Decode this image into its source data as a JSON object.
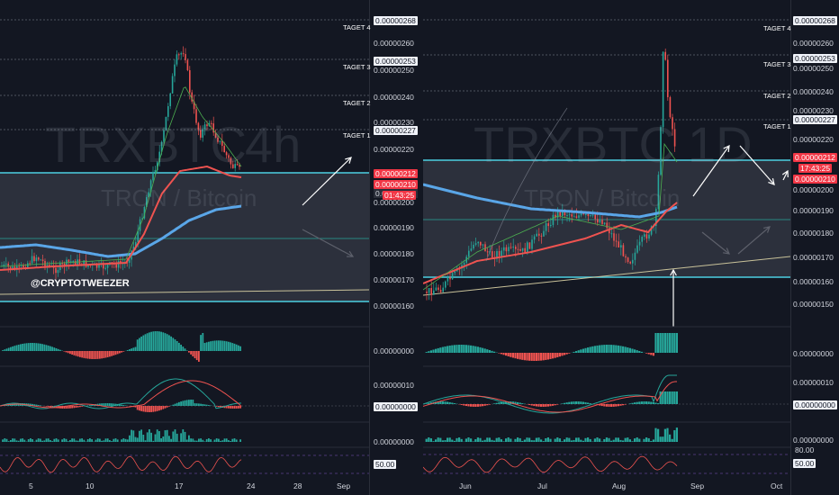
{
  "credit": "@CRYPTOTWEEZER",
  "colors": {
    "background": "#131722",
    "zone": "#363a45",
    "support_line": "#4dd0e1",
    "ema_blue": "#5aa6e8",
    "ema_red": "#ef5350",
    "up": "#26a69a",
    "down": "#ef5350",
    "trend": "#c9c29a"
  },
  "left": {
    "watermark_symbol": "TRXBTC",
    "watermark_interval": "4h",
    "watermark_sub": "TRON / Bitcoin",
    "price_ticks": [
      "0.00000268",
      "0.00000260",
      "0.00000253",
      "0.00000250",
      "0.00000240",
      "0.00000230",
      "0.00000227",
      "0.00000220",
      "0.00000212",
      "0.00000210",
      "0.00000210",
      "01:43:25",
      "0.00000200",
      "0.00000190",
      "0.00000180",
      "0.00000170",
      "0.00000160"
    ],
    "targets": [
      "TAGET 4",
      "TAGET 3",
      "TAGET 2",
      "TAGET 1"
    ],
    "macd1_tick": "0.00000000",
    "macd2_ticks": [
      "0.00000010",
      "0.00000000"
    ],
    "vol_tick": "0.00000000",
    "rsi_tick": "50.00",
    "x_labels": [
      "5",
      "10",
      "17",
      "24",
      "28",
      "Sep"
    ]
  },
  "right": {
    "watermark_symbol": "TRXBTC",
    "watermark_interval": "1D",
    "watermark_sub": "TRON / Bitcoin",
    "price_ticks": [
      "0.00000268",
      "0.00000260",
      "0.00000253",
      "0.00000250",
      "0.00000240",
      "0.00000230",
      "0.00000227",
      "0.00000220",
      "0.00000212",
      "17:43:25",
      "0.00000210",
      "0.00000200",
      "0.00000190",
      "0.00000180",
      "0.00000170",
      "0.00000160",
      "0.00000150"
    ],
    "targets": [
      "TAGET 4",
      "TAGET 3",
      "TAGET 2",
      "TAGET 1"
    ],
    "macd1_tick": "0.00000000",
    "macd2_ticks": [
      "0.00000010",
      "0.00000000"
    ],
    "vol_tick": "0.00000000",
    "rsi_ticks": [
      "80.00",
      "50.00"
    ],
    "x_labels": [
      "Jun",
      "Jul",
      "Aug",
      "Sep",
      "Oct"
    ]
  }
}
